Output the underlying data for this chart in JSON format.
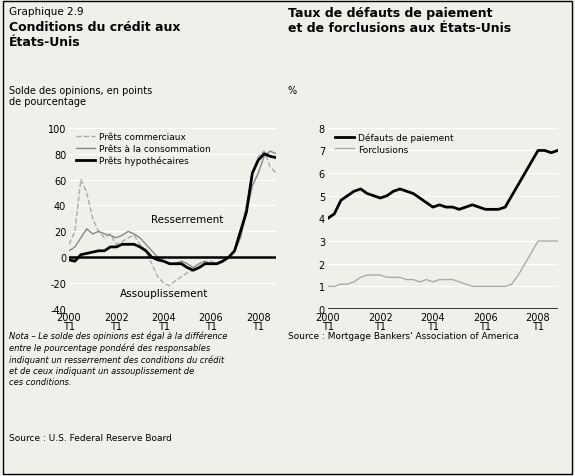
{
  "title_left_small": "Graphique 2.9",
  "title_left_bold": "Conditions du crédit aux\nÉtats-Unis",
  "ylabel_left": "Solde des opinions, en points\nde pourcentage",
  "title_right_bold": "Taux de défauts de paiement\net de forclusions aux États-Unis",
  "ylabel_right": "%",
  "source_left": "Source : U.S. Federal Reserve Board",
  "nota_left": "Nota – Le solde des opinions est égal à la différence\nentre le pourcentage pondéré des responsables\nindiquant un resserrement des conditions du crédit\net de ceux indiquant un assouplissement de\nces conditions.",
  "source_right": "Source : Mortgage Bankers' Association of America",
  "annotation_resserrement": "Resserrement",
  "annotation_assouplissement": "Assouplissement",
  "left_ylim": [
    -40,
    100
  ],
  "left_yticks": [
    -40,
    -20,
    0,
    20,
    40,
    60,
    80,
    100
  ],
  "right_ylim": [
    0,
    8
  ],
  "right_yticks": [
    0,
    1,
    2,
    3,
    4,
    5,
    6,
    7,
    8
  ],
  "xtick_labels": [
    "2000\nT1",
    "2002\nT1",
    "2004\nT1",
    "2006\nT1",
    "2008\nT1"
  ],
  "xtick_positions": [
    0,
    8,
    16,
    24,
    32
  ],
  "commercial_x": [
    0,
    1,
    2,
    3,
    4,
    5,
    6,
    7,
    8,
    9,
    10,
    11,
    12,
    13,
    14,
    15,
    16,
    17,
    18,
    19,
    20,
    21,
    22,
    23,
    24,
    25,
    26,
    27,
    28,
    29,
    30,
    31,
    32,
    33,
    34,
    35
  ],
  "commercial_y": [
    10,
    20,
    60,
    50,
    30,
    20,
    15,
    18,
    10,
    12,
    15,
    17,
    10,
    5,
    -5,
    -15,
    -20,
    -22,
    -18,
    -15,
    -12,
    -10,
    -8,
    -5,
    -3,
    -5,
    -2,
    0,
    5,
    20,
    40,
    65,
    78,
    82,
    70,
    65
  ],
  "consommation_x": [
    0,
    1,
    2,
    3,
    4,
    5,
    6,
    7,
    8,
    9,
    10,
    11,
    12,
    13,
    14,
    15,
    16,
    17,
    18,
    19,
    20,
    21,
    22,
    23,
    24,
    25,
    26,
    27,
    28,
    29,
    30,
    31,
    32,
    33,
    34,
    35
  ],
  "consommation_y": [
    5,
    8,
    15,
    22,
    18,
    20,
    18,
    17,
    15,
    17,
    20,
    18,
    15,
    10,
    5,
    0,
    -3,
    -5,
    -5,
    -3,
    -5,
    -8,
    -5,
    -3,
    -5,
    -5,
    -3,
    0,
    5,
    15,
    35,
    55,
    65,
    78,
    82,
    80
  ],
  "hypothecaires_x": [
    0,
    1,
    2,
    3,
    4,
    5,
    6,
    7,
    8,
    9,
    10,
    11,
    12,
    13,
    14,
    15,
    16,
    17,
    18,
    19,
    20,
    21,
    22,
    23,
    24,
    25,
    26,
    27,
    28,
    29,
    30,
    31,
    32,
    33,
    34,
    35
  ],
  "hypothecaires_y": [
    -2,
    -3,
    2,
    3,
    4,
    5,
    5,
    8,
    8,
    10,
    10,
    10,
    8,
    5,
    0,
    -2,
    -3,
    -5,
    -5,
    -5,
    -8,
    -10,
    -8,
    -5,
    -5,
    -5,
    -3,
    0,
    5,
    20,
    35,
    65,
    75,
    80,
    78,
    77
  ],
  "defauts_x": [
    0,
    1,
    2,
    3,
    4,
    5,
    6,
    7,
    8,
    9,
    10,
    11,
    12,
    13,
    14,
    15,
    16,
    17,
    18,
    19,
    20,
    21,
    22,
    23,
    24,
    25,
    26,
    27,
    28,
    29,
    30,
    31,
    32,
    33,
    34,
    35
  ],
  "defauts_y": [
    4.0,
    4.2,
    4.8,
    5.0,
    5.2,
    5.3,
    5.1,
    5.0,
    4.9,
    5.0,
    5.2,
    5.3,
    5.2,
    5.1,
    4.9,
    4.7,
    4.5,
    4.6,
    4.5,
    4.5,
    4.4,
    4.5,
    4.6,
    4.5,
    4.4,
    4.4,
    4.4,
    4.5,
    5.0,
    5.5,
    6.0,
    6.5,
    7.0,
    7.0,
    6.9,
    7.0
  ],
  "forclusions_x": [
    0,
    1,
    2,
    3,
    4,
    5,
    6,
    7,
    8,
    9,
    10,
    11,
    12,
    13,
    14,
    15,
    16,
    17,
    18,
    19,
    20,
    21,
    22,
    23,
    24,
    25,
    26,
    27,
    28,
    29,
    30,
    31,
    32,
    33,
    34,
    35
  ],
  "forclusions_y": [
    1.0,
    1.0,
    1.1,
    1.1,
    1.2,
    1.4,
    1.5,
    1.5,
    1.5,
    1.4,
    1.4,
    1.4,
    1.3,
    1.3,
    1.2,
    1.3,
    1.2,
    1.3,
    1.3,
    1.3,
    1.2,
    1.1,
    1.0,
    1.0,
    1.0,
    1.0,
    1.0,
    1.0,
    1.1,
    1.5,
    2.0,
    2.5,
    3.0,
    3.0,
    3.0,
    3.0
  ],
  "color_commercial": "#aaaaaa",
  "color_consommation": "#888888",
  "color_hypothecaires": "#000000",
  "color_defauts": "#000000",
  "color_forclusions": "#aaaaaa",
  "bg_color": "#f0f0eb"
}
